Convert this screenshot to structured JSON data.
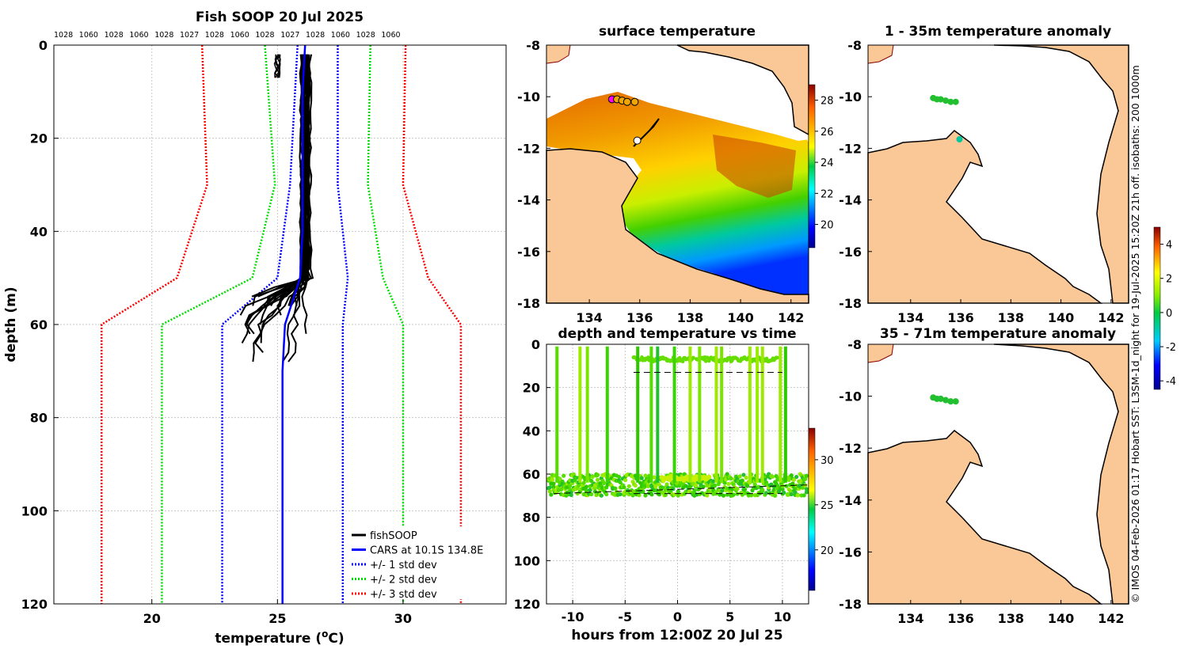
{
  "chart_data": [
    {
      "type": "line",
      "title": "Fish SOOP 20 Jul 2025",
      "xlabel": "temperature",
      "xlabel_unit_sup": "o",
      "xlabel_unit": "C",
      "xlabel_close": ")",
      "xlabel_open": " (",
      "ylabel": "depth (m)",
      "xlim": [
        16.1,
        34.1
      ],
      "ylim": [
        0,
        120
      ],
      "xticks": [
        20,
        25,
        30
      ],
      "yticks": [
        0,
        20,
        40,
        60,
        80,
        100,
        120
      ],
      "top_labels": [
        "1028",
        "1060",
        "1028",
        "1060",
        "1028",
        "1027",
        "1028",
        "1060",
        "1028",
        "1027",
        "1028",
        "1060",
        "1028",
        "1060"
      ],
      "series": [
        {
          "name": "fishSOOP",
          "color": "#000000",
          "style": "solid",
          "depth_range": [
            2,
            70
          ],
          "temp_range": [
            23.5,
            26.5
          ]
        },
        {
          "name": "CARS at 10.1S 134.8E",
          "color": "#0000ff",
          "style": "solid",
          "points": [
            [
              26.1,
              0
            ],
            [
              26.0,
              10
            ],
            [
              26.0,
              20
            ],
            [
              26.0,
              30
            ],
            [
              26.0,
              40
            ],
            [
              25.9,
              50
            ],
            [
              25.3,
              60
            ],
            [
              25.2,
              70
            ],
            [
              25.2,
              80
            ],
            [
              25.2,
              100
            ],
            [
              25.2,
              120
            ]
          ]
        },
        {
          "name": "+/- 1 std dev",
          "color": "#0000ff",
          "style": "dotted",
          "lower": [
            [
              25.8,
              0
            ],
            [
              25.5,
              30
            ],
            [
              25.0,
              50
            ],
            [
              22.8,
              60
            ],
            [
              22.8,
              120
            ]
          ],
          "upper": [
            [
              27.4,
              0
            ],
            [
              27.4,
              30
            ],
            [
              27.8,
              50
            ],
            [
              27.6,
              60
            ],
            [
              27.6,
              120
            ]
          ]
        },
        {
          "name": "+/- 2 std dev",
          "color": "#00dd00",
          "style": "dotted",
          "lower": [
            [
              24.5,
              0
            ],
            [
              24.9,
              30
            ],
            [
              24.0,
              50
            ],
            [
              20.4,
              60
            ],
            [
              20.4,
              120
            ]
          ],
          "upper": [
            [
              28.7,
              0
            ],
            [
              28.6,
              30
            ],
            [
              29.2,
              50
            ],
            [
              30.0,
              60
            ],
            [
              30.0,
              120
            ]
          ]
        },
        {
          "name": "+/- 3 std dev",
          "color": "#ff0000",
          "style": "dotted",
          "lower": [
            [
              22.0,
              0
            ],
            [
              22.2,
              30
            ],
            [
              21.0,
              50
            ],
            [
              18.0,
              60
            ],
            [
              18.0,
              120
            ]
          ],
          "upper": [
            [
              30.1,
              0
            ],
            [
              30.0,
              30
            ],
            [
              31.0,
              50
            ],
            [
              32.3,
              60
            ],
            [
              32.3,
              120
            ]
          ]
        }
      ]
    },
    {
      "type": "heatmap",
      "title": "surface temperature",
      "xlim": [
        132.3,
        142.7
      ],
      "ylim": [
        -18,
        -8
      ],
      "xticks": [
        134,
        136,
        138,
        140,
        142
      ],
      "yticks": [
        -8,
        -10,
        -12,
        -14,
        -16,
        -18
      ],
      "colorbar_ticks": [
        20,
        22,
        24,
        26,
        28
      ],
      "colorbar_range": [
        18.5,
        29.0
      ]
    },
    {
      "type": "scatter",
      "title": "depth and temperature vs time",
      "xlabel": "hours from 12:00Z 20 Jul 25",
      "xlim": [
        -12.5,
        12.5
      ],
      "ylim": [
        0,
        120
      ],
      "xticks": [
        -10,
        -5,
        0,
        5,
        10
      ],
      "yticks": [
        0,
        20,
        40,
        60,
        80,
        100,
        120
      ],
      "colorbar_ticks": [
        20,
        25,
        30
      ],
      "colorbar_range": [
        15.5,
        33.5
      ],
      "dashed_depths": [
        13,
        69
      ],
      "bottom_band_depth": [
        58,
        70
      ]
    },
    {
      "type": "heatmap",
      "title": "1 - 35m temperature anomaly",
      "xlim": [
        132.3,
        142.7
      ],
      "ylim": [
        -18,
        -8
      ],
      "xticks": [
        134,
        136,
        138,
        140,
        142
      ],
      "yticks": [
        -8,
        -10,
        -12,
        -14,
        -16,
        -18
      ]
    },
    {
      "type": "heatmap",
      "title": "35 - 71m temperature anomaly",
      "xlim": [
        132.3,
        142.7
      ],
      "ylim": [
        -18,
        -8
      ],
      "xticks": [
        134,
        136,
        138,
        140,
        142
      ],
      "yticks": [
        -8,
        -10,
        -12,
        -14,
        -16,
        -18
      ],
      "colorbar_ticks": [
        -4,
        -2,
        0,
        2,
        4
      ],
      "colorbar_range": [
        -4.5,
        5.0
      ]
    }
  ],
  "footer_text": "© IMOS 04-Feb-2026 01:17 Hobart SST: L3SM-1d_night for 19-Jul-2025 15:20Z 21h off. isobaths: 200  1000m",
  "colors": {
    "land": "#fac896",
    "coast": "#000000",
    "axis": "#000000",
    "grid": "#c8c8c8"
  }
}
